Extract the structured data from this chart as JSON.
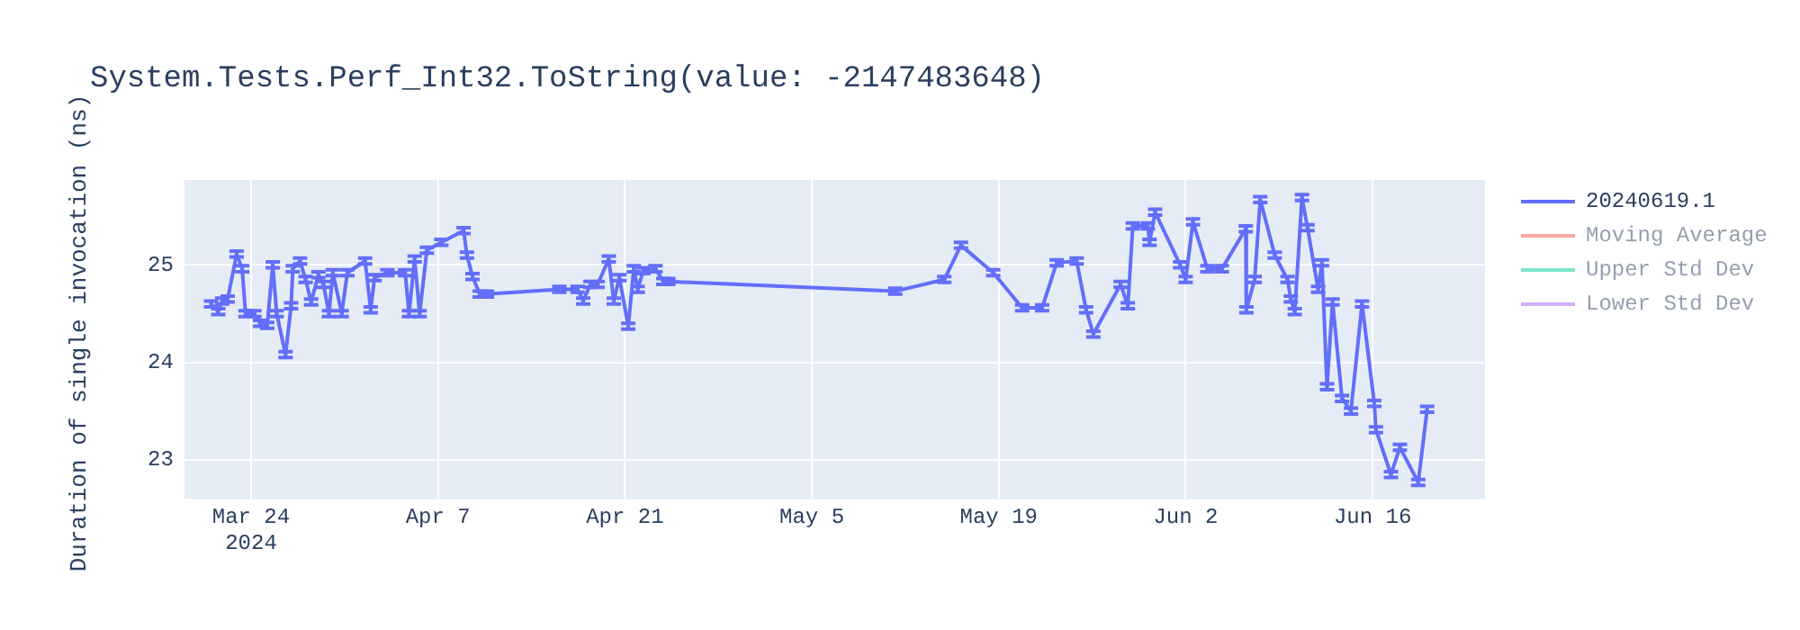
{
  "chart_data": {
    "type": "line",
    "title": "System.Tests.Perf_Int32.ToString(value: -2147483648)",
    "ylabel": "Duration of single invocation (ns)",
    "x": [
      "2024-03-21T00:00",
      "2024-03-21T13:00",
      "2024-03-21T20:00",
      "2024-03-22T06:00",
      "2024-03-22T22:00",
      "2024-03-23T08:00",
      "2024-03-23T14:00",
      "2024-03-24T06:00",
      "2024-03-24T16:00",
      "2024-03-25T05:00",
      "2024-03-25T15:00",
      "2024-03-25T22:00",
      "2024-03-26T14:00",
      "2024-03-27T00:00",
      "2024-03-27T03:00",
      "2024-03-27T16:00",
      "2024-03-28T02:00",
      "2024-03-28T12:00",
      "2024-03-29T01:00",
      "2024-03-29T10:00",
      "2024-03-29T20:00",
      "2024-03-30T03:00",
      "2024-03-30T19:00",
      "2024-03-31T05:00",
      "2024-04-01T13:00",
      "2024-04-01T23:00",
      "2024-04-02T06:00",
      "2024-04-03T05:00",
      "2024-04-04T13:00",
      "2024-04-04T20:00",
      "2024-04-05T06:00",
      "2024-04-05T15:00",
      "2024-04-06T04:00",
      "2024-04-07T06:00",
      "2024-04-08T22:00",
      "2024-04-09T04:00",
      "2024-04-09T14:00",
      "2024-04-10T03:00",
      "2024-04-10T16:00",
      "2024-04-16T02:00",
      "2024-04-17T11:00",
      "2024-04-17T21:00",
      "2024-04-18T10:00",
      "2024-04-18T23:00",
      "2024-04-19T19:00",
      "2024-04-20T04:00",
      "2024-04-20T14:00",
      "2024-04-21T06:00",
      "2024-04-21T16:00",
      "2024-04-21T23:00",
      "2024-04-22T09:00",
      "2024-04-23T07:00",
      "2024-04-23T21:00",
      "2024-04-24T06:00",
      "2024-05-11T06:00",
      "2024-05-14T22:00",
      "2024-05-16T04:00",
      "2024-05-18T14:00",
      "2024-05-20T18:00",
      "2024-05-22T06:00",
      "2024-05-23T08:00",
      "2024-05-24T20:00",
      "2024-05-25T13:00",
      "2024-05-26T02:00",
      "2024-05-28T03:00",
      "2024-05-28T16:00",
      "2024-05-29T01:00",
      "2024-05-30T04:00",
      "2024-05-30T07:00",
      "2024-05-30T17:00",
      "2024-06-01T14:00",
      "2024-06-02T00:00",
      "2024-06-02T13:00",
      "2024-06-03T15:00",
      "2024-06-04T17:00",
      "2024-06-06T12:00",
      "2024-06-06T13:00",
      "2024-06-07T04:00",
      "2024-06-07T14:00",
      "2024-06-08T16:00",
      "2024-06-09T15:00",
      "2024-06-09T21:00",
      "2024-06-10T04:00",
      "2024-06-10T17:00",
      "2024-06-11T03:00",
      "2024-06-11T22:00",
      "2024-06-12T05:00",
      "2024-06-12T14:00",
      "2024-06-13T00:00",
      "2024-06-13T17:00",
      "2024-06-14T09:00",
      "2024-06-15T05:00",
      "2024-06-16T03:00",
      "2024-06-16T06:00",
      "2024-06-17T09:00",
      "2024-06-18T01:00",
      "2024-06-19T10:00",
      "2024-06-20T02:00"
    ],
    "series": [
      {
        "name": "20240619.1",
        "color": "#636efa",
        "values": [
          24.6,
          24.52,
          24.63,
          24.65,
          25.11,
          24.96,
          24.5,
          24.5,
          24.4,
          24.38,
          25.0,
          24.5,
          24.08,
          24.58,
          24.96,
          25.04,
          24.85,
          24.62,
          24.9,
          24.8,
          24.5,
          24.92,
          24.5,
          24.92,
          25.04,
          24.54,
          24.87,
          24.92,
          24.92,
          24.5,
          25.06,
          24.5,
          25.15,
          25.23,
          25.35,
          25.1,
          24.88,
          24.7,
          24.7,
          24.75,
          24.75,
          24.63,
          24.8,
          24.8,
          25.06,
          24.63,
          24.87,
          24.37,
          24.96,
          24.75,
          24.94,
          24.96,
          24.83,
          24.83,
          24.73,
          24.85,
          25.2,
          24.92,
          24.56,
          24.56,
          25.02,
          25.04,
          24.54,
          24.29,
          24.8,
          24.58,
          25.4,
          25.4,
          25.23,
          25.54,
          25.0,
          24.85,
          25.44,
          24.96,
          24.96,
          25.37,
          24.54,
          24.85,
          25.67,
          25.1,
          24.85,
          24.65,
          24.52,
          25.69,
          25.38,
          24.75,
          25.02,
          23.75,
          24.62,
          23.63,
          23.5,
          24.6,
          23.58,
          23.31,
          22.85,
          23.13,
          22.77,
          23.52
        ],
        "errors": [
          0.03,
          0.03,
          0.03,
          0.03,
          0.03,
          0.03,
          0.03,
          0.03,
          0.03,
          0.03,
          0.03,
          0.03,
          0.03,
          0.03,
          0.03,
          0.03,
          0.03,
          0.03,
          0.03,
          0.03,
          0.03,
          0.03,
          0.03,
          0.03,
          0.03,
          0.03,
          0.03,
          0.03,
          0.03,
          0.03,
          0.03,
          0.03,
          0.03,
          0.03,
          0.03,
          0.03,
          0.03,
          0.03,
          0.03,
          0.03,
          0.03,
          0.03,
          0.03,
          0.03,
          0.03,
          0.03,
          0.03,
          0.03,
          0.03,
          0.03,
          0.03,
          0.03,
          0.03,
          0.03,
          0.03,
          0.03,
          0.03,
          0.03,
          0.03,
          0.03,
          0.03,
          0.03,
          0.03,
          0.03,
          0.03,
          0.03,
          0.03,
          0.03,
          0.03,
          0.03,
          0.03,
          0.03,
          0.03,
          0.03,
          0.03,
          0.03,
          0.03,
          0.03,
          0.03,
          0.03,
          0.03,
          0.03,
          0.03,
          0.03,
          0.03,
          0.03,
          0.03,
          0.03,
          0.03,
          0.03,
          0.03,
          0.03,
          0.03,
          0.03,
          0.03,
          0.03,
          0.03,
          0.03
        ]
      },
      {
        "name": "Moving Average",
        "color": "#ef553b",
        "values": [
          null,
          null,
          null,
          null,
          null,
          null,
          null,
          null,
          null,
          null,
          null,
          null,
          null,
          null,
          null,
          null,
          null,
          null,
          null,
          null,
          null,
          null,
          null,
          null,
          null,
          null,
          null,
          null,
          null,
          null,
          null,
          null,
          null,
          null,
          null,
          null,
          null,
          null,
          null,
          null,
          null,
          null,
          null,
          null,
          null,
          null,
          null,
          null,
          null,
          null,
          null,
          null,
          null,
          null,
          null,
          null,
          null,
          null,
          null,
          null,
          null,
          null,
          null,
          null,
          null,
          null,
          null,
          null,
          null,
          null,
          null,
          null,
          null,
          null,
          null,
          null,
          null,
          null,
          null,
          null,
          null,
          null,
          null,
          null,
          null,
          null,
          null,
          null,
          null,
          null,
          null,
          null,
          null,
          null,
          null,
          null,
          null,
          null
        ]
      },
      {
        "name": "Upper Std Dev",
        "color": "#00cc96",
        "values": [
          null,
          null,
          null,
          null,
          null,
          null,
          null,
          null,
          null,
          null,
          null,
          null,
          null,
          null,
          null,
          null,
          null,
          null,
          null,
          null,
          null,
          null,
          null,
          null,
          null,
          null,
          null,
          null,
          null,
          null,
          null,
          null,
          null,
          null,
          null,
          null,
          null,
          null,
          null,
          null,
          null,
          null,
          null,
          null,
          null,
          null,
          null,
          null,
          null,
          null,
          null,
          null,
          null,
          null,
          null,
          null,
          null,
          null,
          null,
          null,
          null,
          null,
          null,
          null,
          null,
          null,
          null,
          null,
          null,
          null,
          null,
          null,
          null,
          null,
          null,
          null,
          null,
          null,
          null,
          null,
          null,
          null,
          null,
          null,
          null,
          null,
          null,
          null,
          null,
          null,
          null,
          null,
          null,
          null,
          null,
          null,
          null,
          null
        ]
      },
      {
        "name": "Lower Std Dev",
        "color": "#ab63fa",
        "values": [
          null,
          null,
          null,
          null,
          null,
          null,
          null,
          null,
          null,
          null,
          null,
          null,
          null,
          null,
          null,
          null,
          null,
          null,
          null,
          null,
          null,
          null,
          null,
          null,
          null,
          null,
          null,
          null,
          null,
          null,
          null,
          null,
          null,
          null,
          null,
          null,
          null,
          null,
          null,
          null,
          null,
          null,
          null,
          null,
          null,
          null,
          null,
          null,
          null,
          null,
          null,
          null,
          null,
          null,
          null,
          null,
          null,
          null,
          null,
          null,
          null,
          null,
          null,
          null,
          null,
          null,
          null,
          null,
          null,
          null,
          null,
          null,
          null,
          null,
          null,
          null,
          null,
          null,
          null,
          null,
          null,
          null,
          null,
          null,
          null,
          null,
          null,
          null,
          null,
          null,
          null,
          null,
          null,
          null,
          null,
          null,
          null,
          null
        ]
      }
    ],
    "xlim": [
      "2024-03-19T00:00",
      "2024-06-24T10:00"
    ],
    "xticks": [
      {
        "value": "2024-03-24",
        "label": "Mar 24\n2024"
      },
      {
        "value": "2024-04-07",
        "label": "Apr 7"
      },
      {
        "value": "2024-04-21",
        "label": "Apr 21"
      },
      {
        "value": "2024-05-05",
        "label": "May 5"
      },
      {
        "value": "2024-05-19",
        "label": "May 19"
      },
      {
        "value": "2024-06-02",
        "label": "Jun 2"
      },
      {
        "value": "2024-06-16",
        "label": "Jun 16"
      }
    ],
    "ylim": [
      22.6,
      25.87
    ],
    "yticks": [
      23,
      24,
      25
    ],
    "grid": true,
    "legend": "right"
  }
}
